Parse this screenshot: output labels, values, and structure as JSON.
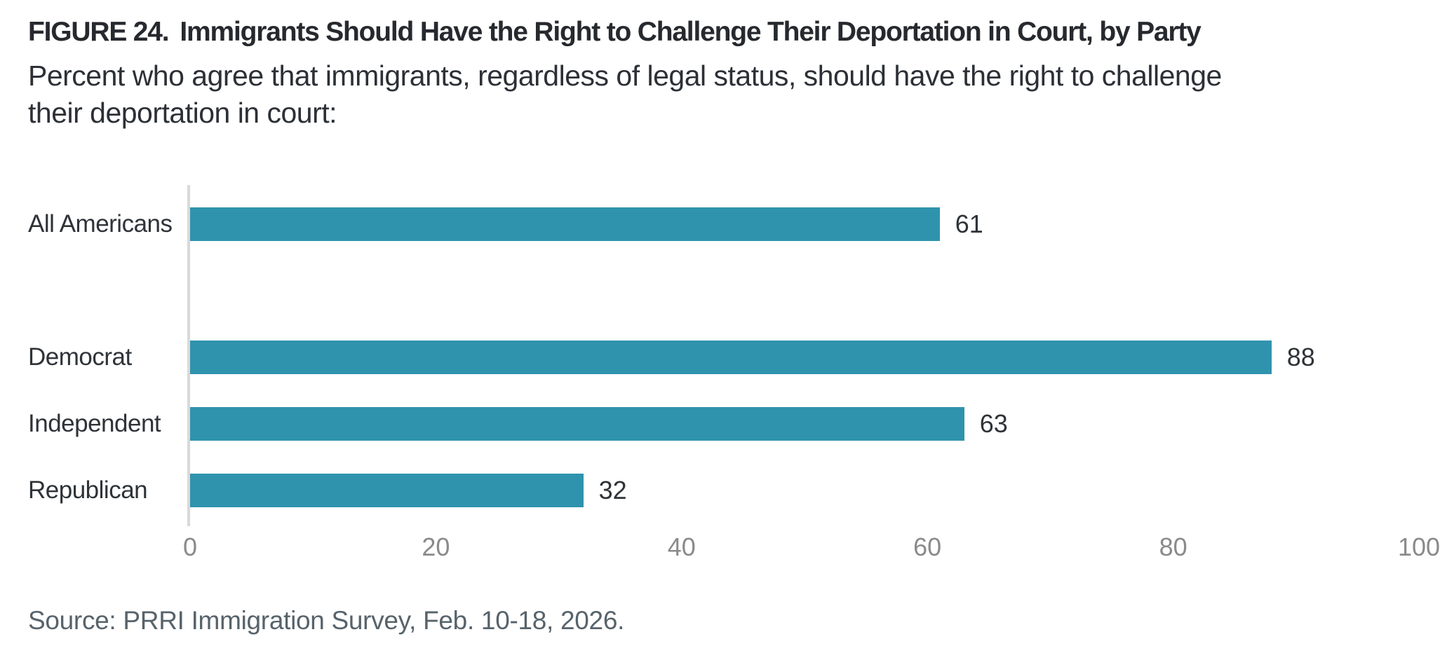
{
  "header": {
    "figure_label": "FIGURE 24.",
    "title": "Immigrants Should Have the Right to Challenge Their Deportation in Court, by Party",
    "subtitle_line1": "Percent who agree that immigrants, regardless of legal status, should have the right to challenge",
    "subtitle_line2": "their deportation in court:"
  },
  "chart_data": {
    "type": "bar",
    "orientation": "horizontal",
    "categories": [
      "All Americans",
      "Democrat",
      "Independent",
      "Republican"
    ],
    "values": [
      61,
      88,
      63,
      32
    ],
    "series": [
      {
        "name": "Percent who agree",
        "values": [
          61,
          88,
          63,
          32
        ]
      }
    ],
    "xlabel": "",
    "ylabel": "",
    "xlim": [
      0,
      100
    ],
    "x_ticks": [
      0,
      20,
      40,
      60,
      80,
      100
    ],
    "grid": "off",
    "legend": "none",
    "bar_color": "#2f93ad",
    "axis_line_color": "#d9d9d9",
    "layout_note": "All Americans row separated from party rows by one empty row"
  },
  "source": "Source: PRRI Immigration Survey, Feb. 10-18, 2026."
}
